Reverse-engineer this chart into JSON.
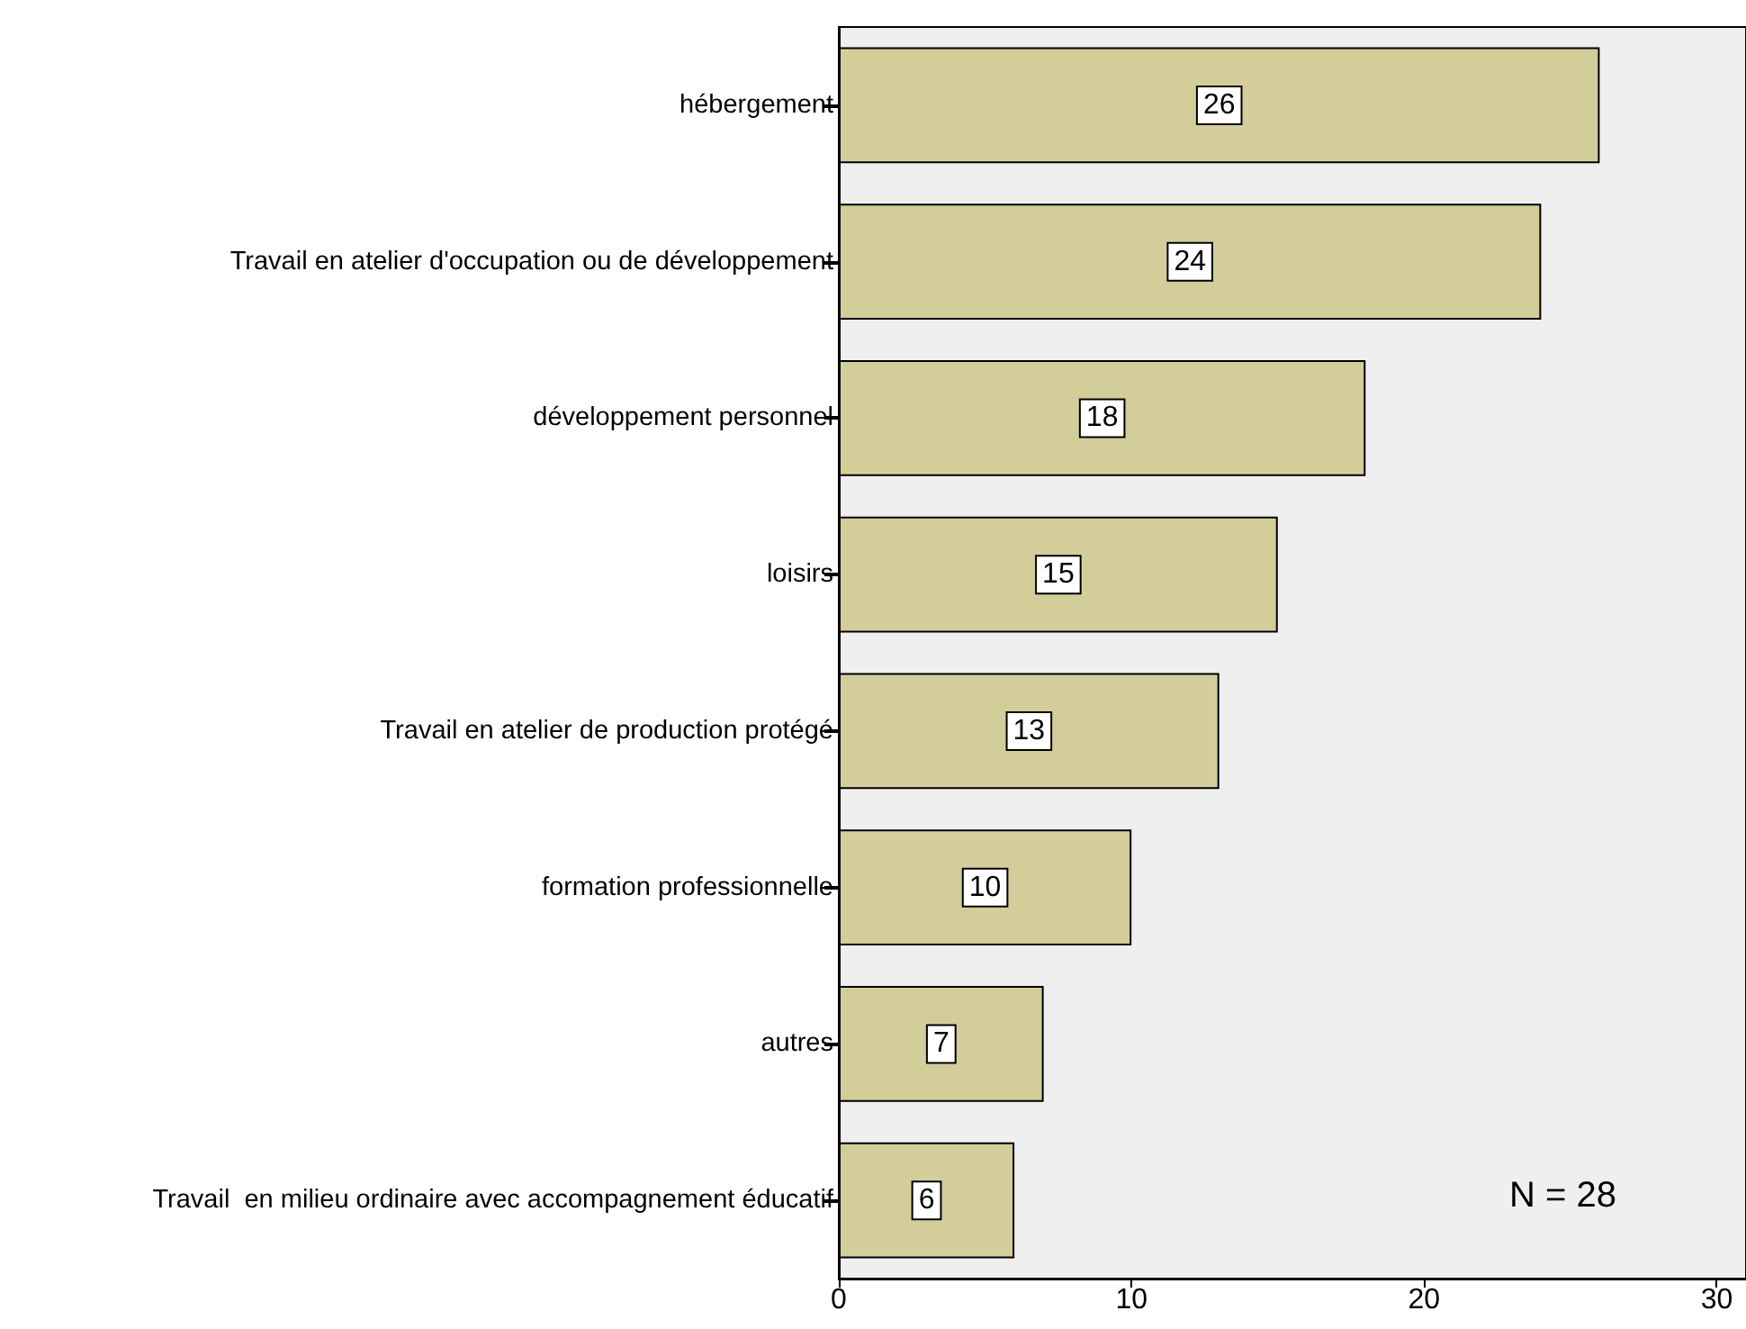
{
  "chart_data": {
    "type": "bar",
    "orientation": "horizontal",
    "categories": [
      "hébergement",
      "Travail en atelier d'occupation ou de développement",
      "développement personnel",
      "loisirs",
      "Travail en atelier de production protégé",
      "formation professionnelle",
      "autres",
      "Travail  en milieu ordinaire avec accompagnement éducatif"
    ],
    "values": [
      26,
      24,
      18,
      15,
      13,
      10,
      7,
      6
    ],
    "color": "#d3cd9a",
    "xlim": [
      0,
      31
    ],
    "xticks": [
      0,
      10,
      20,
      30
    ],
    "data_labels": true,
    "grid": false,
    "annotations": [
      "N = 28"
    ]
  }
}
